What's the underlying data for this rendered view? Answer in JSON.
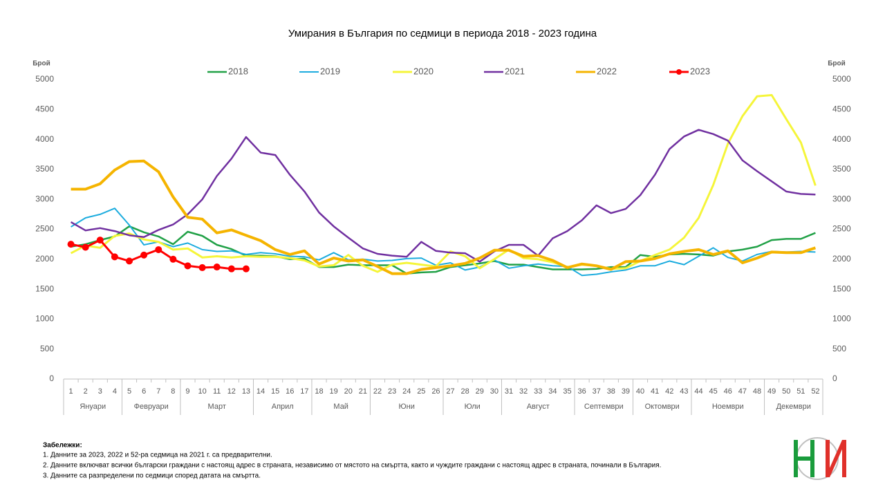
{
  "chart_data": {
    "type": "line",
    "title": "Умирания в България по седмици в периода 2018 - 2023 година",
    "y_label": "Брой",
    "y2_label": "Брой",
    "categories": [
      1,
      2,
      3,
      4,
      5,
      6,
      7,
      8,
      9,
      10,
      11,
      12,
      13,
      14,
      15,
      16,
      17,
      18,
      19,
      20,
      21,
      22,
      23,
      24,
      25,
      26,
      27,
      28,
      29,
      30,
      31,
      32,
      33,
      34,
      35,
      36,
      37,
      38,
      39,
      40,
      41,
      42,
      43,
      44,
      45,
      46,
      47,
      48,
      49,
      50,
      51,
      52
    ],
    "months": [
      {
        "label": "Януари",
        "first_week": 1,
        "last_week": 4
      },
      {
        "label": "Февруари",
        "first_week": 5,
        "last_week": 8
      },
      {
        "label": "Март",
        "first_week": 9,
        "last_week": 13
      },
      {
        "label": "Април",
        "first_week": 14,
        "last_week": 17
      },
      {
        "label": "Май",
        "first_week": 18,
        "last_week": 21
      },
      {
        "label": "Юни",
        "first_week": 22,
        "last_week": 26
      },
      {
        "label": "Юли",
        "first_week": 27,
        "last_week": 30
      },
      {
        "label": "Август",
        "first_week": 31,
        "last_week": 35
      },
      {
        "label": "Септември",
        "first_week": 36,
        "last_week": 39
      },
      {
        "label": "Октомври",
        "first_week": 40,
        "last_week": 43
      },
      {
        "label": "Ноември",
        "first_week": 44,
        "last_week": 48
      },
      {
        "label": "Декември",
        "first_week": 49,
        "last_week": 52
      }
    ],
    "ylim": [
      0,
      5000
    ],
    "yticks": [
      0,
      500,
      1000,
      1500,
      2000,
      2500,
      3000,
      3500,
      4000,
      4500,
      5000
    ],
    "y2lim": [
      0,
      5000
    ],
    "y2ticks": [
      0,
      500,
      1000,
      1500,
      2000,
      2500,
      3000,
      3500,
      4000,
      4500,
      5000
    ],
    "grid": false,
    "legend": "top",
    "series": [
      {
        "name": "2018",
        "color": "#21a147",
        "width": 2.5,
        "values": [
          2210,
          2250,
          2320,
          2380,
          2550,
          2450,
          2380,
          2250,
          2460,
          2390,
          2240,
          2170,
          2060,
          2060,
          2050,
          2000,
          2010,
          1870,
          1870,
          1910,
          1900,
          1900,
          1900,
          1760,
          1780,
          1790,
          1870,
          1900,
          1930,
          1970,
          1910,
          1910,
          1870,
          1830,
          1830,
          1830,
          1840,
          1870,
          1870,
          2070,
          2040,
          2080,
          2090,
          2080,
          2060,
          2130,
          2160,
          2210,
          2320,
          2340,
          2340,
          2440
        ]
      },
      {
        "name": "2019",
        "color": "#1cacde",
        "width": 2,
        "values": [
          2540,
          2690,
          2750,
          2850,
          2570,
          2240,
          2290,
          2210,
          2270,
          2160,
          2130,
          2140,
          2080,
          2110,
          2090,
          2050,
          2040,
          1990,
          2110,
          1990,
          2000,
          1970,
          1980,
          2010,
          2020,
          1900,
          1940,
          1820,
          1870,
          1990,
          1850,
          1890,
          1920,
          1890,
          1880,
          1730,
          1750,
          1790,
          1820,
          1890,
          1890,
          1970,
          1910,
          2050,
          2190,
          2030,
          1970,
          2080,
          2130,
          2120,
          2130,
          2120
        ]
      },
      {
        "name": "2020",
        "color": "#f5f53a",
        "width": 3,
        "values": [
          2100,
          2230,
          2190,
          2390,
          2430,
          2330,
          2290,
          2160,
          2180,
          2030,
          2050,
          2030,
          2050,
          2040,
          2040,
          2020,
          1980,
          1880,
          1900,
          2070,
          1890,
          1790,
          1910,
          1940,
          1910,
          1880,
          2130,
          2050,
          1850,
          2000,
          2160,
          2020,
          2000,
          1950,
          1870,
          1910,
          1890,
          1840,
          1850,
          1970,
          2070,
          2160,
          2360,
          2690,
          3240,
          3930,
          4390,
          4720,
          4740,
          4340,
          3950,
          3230
        ]
      },
      {
        "name": "2021",
        "color": "#7030a0",
        "width": 2.5,
        "values": [
          2620,
          2480,
          2520,
          2470,
          2400,
          2370,
          2490,
          2580,
          2750,
          3000,
          3390,
          3680,
          4040,
          3780,
          3740,
          3410,
          3130,
          2780,
          2550,
          2360,
          2180,
          2090,
          2060,
          2040,
          2290,
          2140,
          2110,
          2100,
          1960,
          2130,
          2240,
          2240,
          2060,
          2350,
          2470,
          2650,
          2900,
          2770,
          2840,
          3070,
          3410,
          3840,
          4050,
          4160,
          4090,
          3980,
          3650,
          3470,
          3300,
          3130,
          3090,
          3080
        ]
      },
      {
        "name": "2022",
        "color": "#f5b400",
        "width": 4,
        "values": [
          3170,
          3170,
          3260,
          3490,
          3630,
          3640,
          3460,
          3040,
          2700,
          2670,
          2440,
          2490,
          2400,
          2310,
          2160,
          2080,
          2140,
          1920,
          2020,
          1970,
          1990,
          1880,
          1760,
          1760,
          1830,
          1860,
          1890,
          1930,
          2020,
          2150,
          2150,
          2050,
          2060,
          1980,
          1860,
          1920,
          1890,
          1830,
          1960,
          1970,
          2010,
          2090,
          2130,
          2160,
          2080,
          2140,
          1940,
          2020,
          2120,
          2110,
          2110,
          2190
        ]
      },
      {
        "name": "2023",
        "color": "#ff0000",
        "width": 3,
        "markers": true,
        "values": [
          2250,
          2200,
          2320,
          2040,
          1970,
          2070,
          2160,
          2000,
          1890,
          1860,
          1870,
          1840,
          1840,
          null,
          null,
          null,
          null,
          null,
          null,
          null,
          null,
          null,
          null,
          null,
          null,
          null,
          null,
          null,
          null,
          null,
          null,
          null,
          null,
          null,
          null,
          null,
          null,
          null,
          null,
          null,
          null,
          null,
          null,
          null,
          null,
          null,
          null,
          null,
          null,
          null,
          null,
          null
        ]
      }
    ]
  },
  "notes": {
    "title": "Забележки:",
    "lines": [
      "1. Данните за 2023, 2022 и 52-ра седмица на 2021 г. са предварителни.",
      "2. Данните включват всички български граждани с настоящ адрес в страната, независимо от мястото на смъртта, както и чуждите граждани с настоящ адрес в страната, починали в България.",
      "3. Данните са разпределени по седмици според датата на смъртта."
    ]
  }
}
